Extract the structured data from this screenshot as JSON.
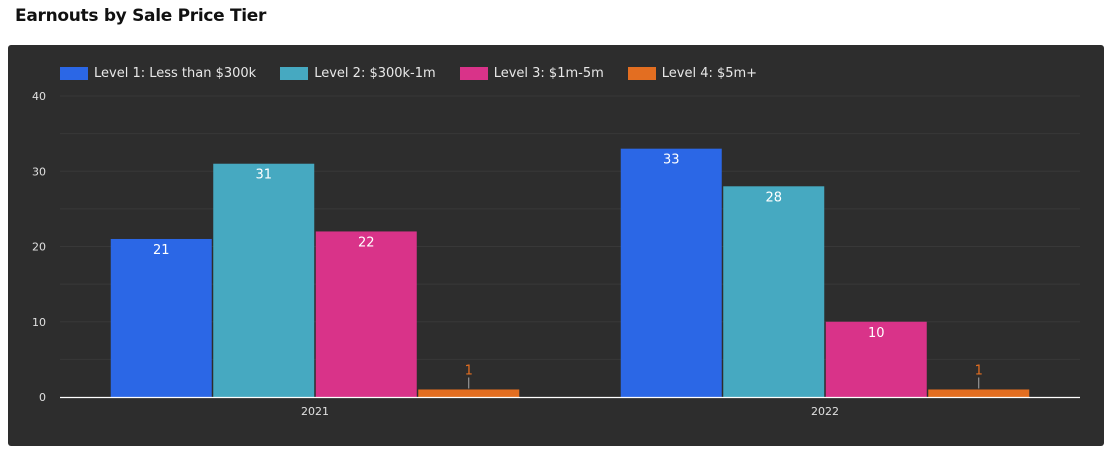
{
  "header": {
    "title": "Earnouts by Sale Price Tier"
  },
  "chart_data": {
    "type": "bar",
    "title": "Earnouts by Sale Price Tier",
    "xlabel": "",
    "ylabel": "",
    "ylim": [
      0,
      40
    ],
    "yticks": [
      0,
      10,
      20,
      30,
      40
    ],
    "grid": true,
    "legend_position": "top-left",
    "categories": [
      "2021",
      "2022"
    ],
    "series": [
      {
        "name": "Level 1: Less than $300k",
        "color": "#2b67e6",
        "values": [
          21,
          33
        ]
      },
      {
        "name": "Level 2: $300k-1m",
        "color": "#46a9c1",
        "values": [
          31,
          28
        ]
      },
      {
        "name": "Level 3: $1m-5m",
        "color": "#d93389",
        "values": [
          22,
          10
        ]
      },
      {
        "name": "Level 4: $5m+",
        "color": "#e36e21",
        "values": [
          1,
          1
        ]
      }
    ],
    "data_labels": true
  },
  "colors": {
    "panel_bg": "#2d2d2d",
    "axis": "#ffffff",
    "grid": "#3a3a3a",
    "text": "#e8e8e8"
  }
}
